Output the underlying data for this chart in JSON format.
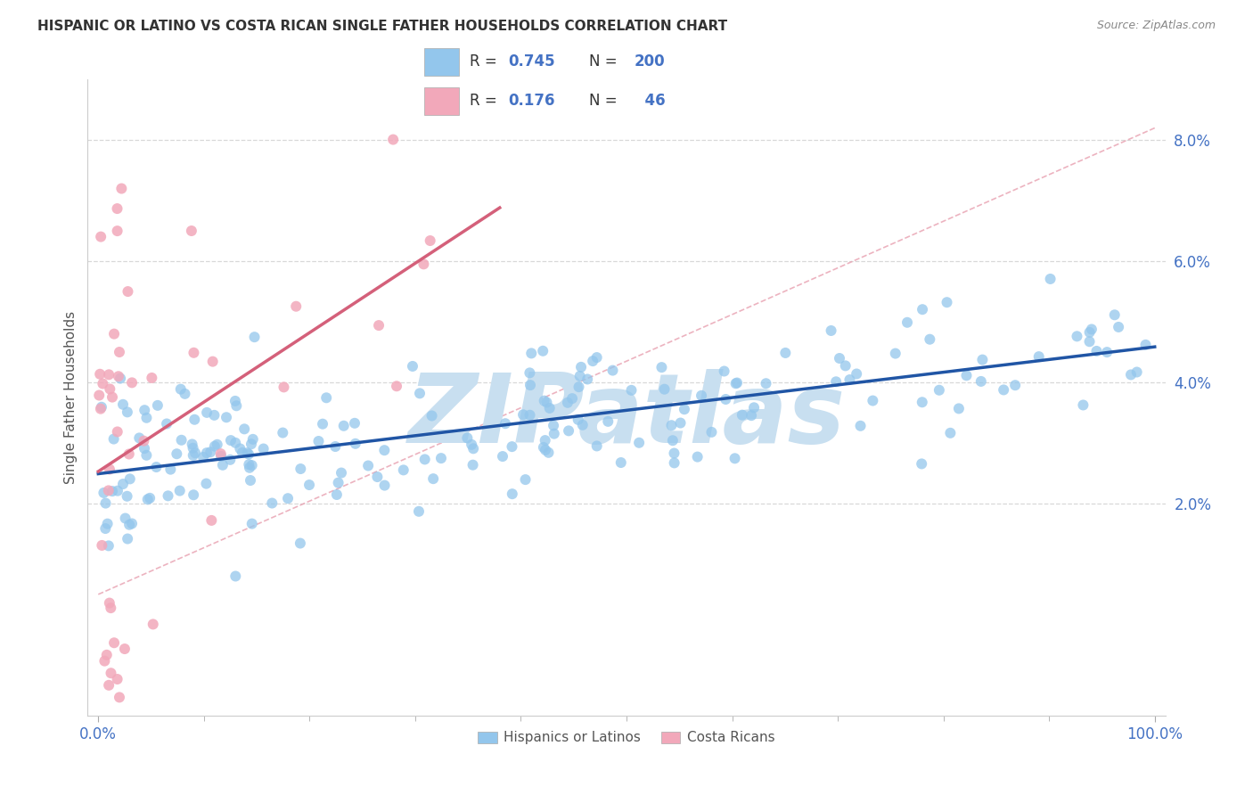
{
  "title": "HISPANIC OR LATINO VS COSTA RICAN SINGLE FATHER HOUSEHOLDS CORRELATION CHART",
  "source": "Source: ZipAtlas.com",
  "ylabel": "Single Father Households",
  "xlim": [
    -0.01,
    1.01
  ],
  "ylim": [
    -0.015,
    0.09
  ],
  "xtick_major": [
    0.0,
    1.0
  ],
  "xtick_minor": [
    0.1,
    0.2,
    0.3,
    0.4,
    0.5,
    0.6,
    0.7,
    0.8,
    0.9
  ],
  "xticklabels_major": [
    "0.0%",
    "100.0%"
  ],
  "ytick_positions": [
    0.02,
    0.04,
    0.06,
    0.08
  ],
  "ytick_labels": [
    "2.0%",
    "4.0%",
    "6.0%",
    "8.0%"
  ],
  "legend_R1": "0.745",
  "legend_N1": "200",
  "legend_R2": "0.176",
  "legend_N2": "46",
  "color_blue": "#93C6EC",
  "color_pink": "#F2A8BA",
  "color_blue_text": "#4472C4",
  "line_blue": "#2055A5",
  "line_pink": "#D4607A",
  "line_diag_color": "#E8A0B0",
  "watermark": "ZIPatlas",
  "watermark_color": "#C8DFF0",
  "background_color": "#FFFFFF",
  "grid_color": "#D8D8D8",
  "seed": 42
}
